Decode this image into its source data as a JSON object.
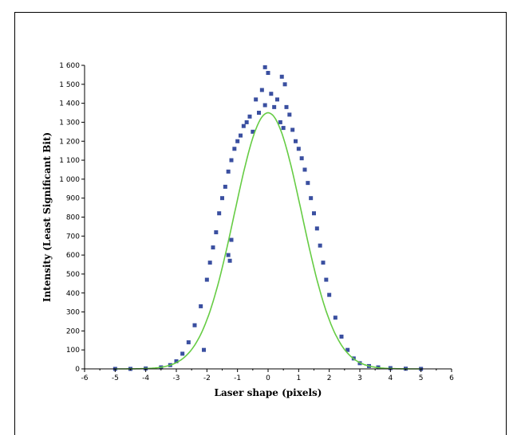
{
  "chart_data": {
    "type": "scatter",
    "title": "",
    "xlabel": "Laser shape (pixels)",
    "ylabel": "Intensity (Least Significant Bit)",
    "xlim": [
      -6,
      6
    ],
    "ylim": [
      0,
      1600
    ],
    "xticks": [
      "-6",
      "-5",
      "-4",
      "-3",
      "-2",
      "-1",
      "0",
      "1",
      "2",
      "3",
      "4",
      "5",
      "6"
    ],
    "yticks": [
      "0",
      "100",
      "200",
      "300",
      "400",
      "500",
      "600",
      "700",
      "800",
      "900",
      "1 000",
      "1 100",
      "1 200",
      "1 300",
      "1 400",
      "1 500",
      "1 600"
    ],
    "grid": false,
    "series": [
      {
        "kind": "scatter",
        "marker": "square",
        "color": "#3a4fa0",
        "x_range": [
          -5,
          5
        ],
        "points": [
          [
            -5.0,
            0
          ],
          [
            -4.5,
            0
          ],
          [
            -4.0,
            2
          ],
          [
            -3.5,
            8
          ],
          [
            -3.2,
            20
          ],
          [
            -3.0,
            40
          ],
          [
            -2.8,
            80
          ],
          [
            -2.6,
            140
          ],
          [
            -2.4,
            230
          ],
          [
            -2.2,
            330
          ],
          [
            -2.1,
            100
          ],
          [
            -2.0,
            470
          ],
          [
            -1.9,
            560
          ],
          [
            -1.8,
            640
          ],
          [
            -1.7,
            720
          ],
          [
            -1.6,
            820
          ],
          [
            -1.5,
            900
          ],
          [
            -1.4,
            960
          ],
          [
            -1.3,
            1040
          ],
          [
            -1.2,
            1100
          ],
          [
            -1.1,
            1160
          ],
          [
            -1.0,
            1200
          ],
          [
            -0.9,
            1230
          ],
          [
            -0.8,
            1280
          ],
          [
            -0.7,
            1300
          ],
          [
            -0.6,
            1330
          ],
          [
            -0.5,
            1250
          ],
          [
            -0.4,
            1420
          ],
          [
            -0.3,
            1350
          ],
          [
            -0.2,
            1470
          ],
          [
            -0.1,
            1390
          ],
          [
            0.0,
            1560
          ],
          [
            0.1,
            1450
          ],
          [
            0.2,
            1380
          ],
          [
            0.3,
            1420
          ],
          [
            0.4,
            1300
          ],
          [
            0.5,
            1270
          ],
          [
            0.6,
            1380
          ],
          [
            0.7,
            1340
          ],
          [
            0.8,
            1260
          ],
          [
            0.9,
            1200
          ],
          [
            1.0,
            1160
          ],
          [
            1.1,
            1110
          ],
          [
            1.2,
            1050
          ],
          [
            1.3,
            980
          ],
          [
            1.4,
            900
          ],
          [
            1.5,
            820
          ],
          [
            1.6,
            740
          ],
          [
            1.7,
            650
          ],
          [
            1.8,
            560
          ],
          [
            1.9,
            470
          ],
          [
            2.0,
            390
          ],
          [
            2.2,
            270
          ],
          [
            2.4,
            170
          ],
          [
            2.6,
            100
          ],
          [
            2.8,
            55
          ],
          [
            3.0,
            30
          ],
          [
            3.3,
            15
          ],
          [
            3.6,
            8
          ],
          [
            4.0,
            4
          ],
          [
            4.5,
            1
          ],
          [
            5.0,
            0
          ],
          [
            -1.3,
            600
          ],
          [
            -1.2,
            680
          ],
          [
            -1.25,
            570
          ],
          [
            0.55,
            1500
          ],
          [
            -0.1,
            1590
          ],
          [
            0.45,
            1540
          ]
        ]
      },
      {
        "kind": "line",
        "color": "#66cc44",
        "model": "gaussian-like fit",
        "amplitude": 1350,
        "center": 0.0,
        "sigma": 1.1
      }
    ]
  }
}
